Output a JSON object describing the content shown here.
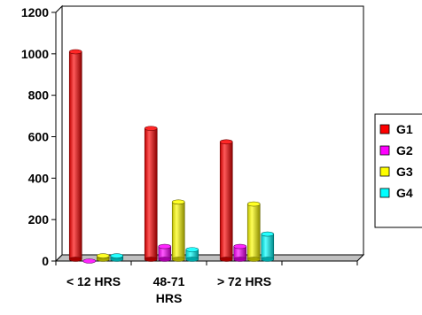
{
  "chart_data": {
    "type": "bar",
    "style": "3d-cylinder",
    "title": "",
    "xlabel": "",
    "ylabel": "",
    "categories": [
      [
        "< 12 HRS"
      ],
      [
        "48-71",
        "HRS"
      ],
      [
        "> 72 HRS"
      ],
      [
        ""
      ]
    ],
    "ylim": [
      0,
      1200
    ],
    "yticks": [
      "0",
      "200",
      "400",
      "600",
      "800",
      "1000",
      "1200"
    ],
    "grid": false,
    "legend_position": "right",
    "series": [
      {
        "name": "G1",
        "color": "#ff0000",
        "values": [
          1010,
          640,
          575,
          null
        ]
      },
      {
        "name": "G2",
        "color": "#ff00ff",
        "values": [
          0,
          70,
          70,
          null
        ]
      },
      {
        "name": "G3",
        "color": "#ffff00",
        "values": [
          25,
          285,
          275,
          null
        ]
      },
      {
        "name": "G4",
        "color": "#00ffff",
        "values": [
          25,
          55,
          130,
          null
        ]
      }
    ]
  }
}
